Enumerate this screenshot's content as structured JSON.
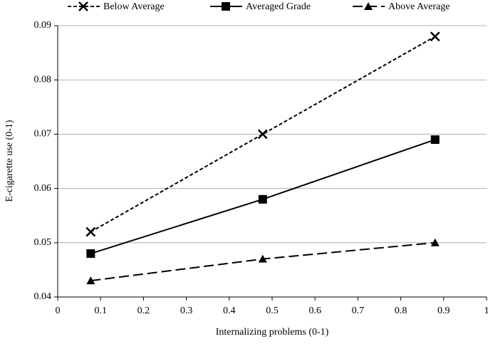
{
  "chart_data": {
    "type": "line",
    "x_label": "Internalizing problems (0-1)",
    "y_label": "E-cigarette use (0-1)",
    "x": [
      0.077,
      0.478,
      0.88
    ],
    "series": [
      {
        "name": "Below Average",
        "color": "#000000",
        "marker": "x",
        "dash": "short",
        "values": [
          0.052,
          0.07,
          0.088
        ]
      },
      {
        "name": "Averaged Grade",
        "color": "#000000",
        "marker": "square",
        "dash": "solid",
        "values": [
          0.048,
          0.058,
          0.069
        ]
      },
      {
        "name": "Above Average",
        "color": "#000000",
        "marker": "triangle",
        "dash": "long",
        "values": [
          0.043,
          0.047,
          0.05
        ]
      }
    ],
    "xlim": [
      0,
      1
    ],
    "xticks": [
      0,
      0.1,
      0.2,
      0.3,
      0.4,
      0.5,
      0.6,
      0.7,
      0.8,
      0.9,
      1
    ],
    "ylim": [
      0.04,
      0.09
    ],
    "yticks": [
      0.04,
      0.05,
      0.06,
      0.07,
      0.08,
      0.09
    ],
    "grid": true,
    "legend": "top"
  }
}
